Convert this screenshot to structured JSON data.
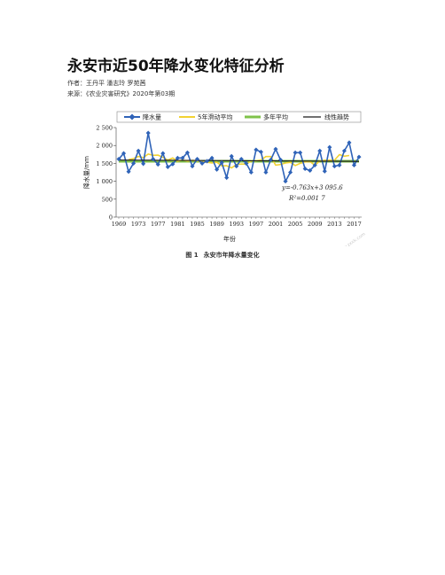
{
  "header": {
    "title": "永安市近50年降水变化特征分析",
    "authors_label": "作者：",
    "authors": "王丹平 潘志玲 罗苑茜",
    "source_label": "来源：",
    "source": "《农业灾害研究》2020年第03期"
  },
  "figure": {
    "caption_number": "图 1",
    "caption_text": "永安市年降水量变化",
    "watermark": "www.zxxk.com"
  },
  "colors": {
    "precip": "#2f63b8",
    "moving_avg": "#f2d232",
    "multi_year_avg": "#7fc24a",
    "trend": "#1a1a1a"
  },
  "chart_data": {
    "type": "line",
    "xlabel": "年份",
    "ylabel": "降水量/mm",
    "ylim": [
      0,
      2500
    ],
    "yticks": [
      "0",
      "500",
      "1 000",
      "1 500",
      "2 000",
      "2 500"
    ],
    "xticks": [
      "1969",
      "1973",
      "1977",
      "1981",
      "1985",
      "1989",
      "1993",
      "1997",
      "2001",
      "2005",
      "2009",
      "2013",
      "2017"
    ],
    "grid": false,
    "legend_position": "top",
    "annotation_eq": "y=-0.763x+3 095.6",
    "annotation_r2": "R²=0.001 7",
    "x": [
      1969,
      1970,
      1971,
      1972,
      1973,
      1974,
      1975,
      1976,
      1977,
      1978,
      1979,
      1980,
      1981,
      1982,
      1983,
      1984,
      1985,
      1986,
      1987,
      1988,
      1989,
      1990,
      1991,
      1992,
      1993,
      1994,
      1995,
      1996,
      1997,
      1998,
      1999,
      2000,
      2001,
      2002,
      2003,
      2004,
      2005,
      2006,
      2007,
      2008,
      2009,
      2010,
      2011,
      2012,
      2013,
      2014,
      2015,
      2016,
      2017,
      2018
    ],
    "series": [
      {
        "name": "降水量",
        "values": [
          1620,
          1780,
          1270,
          1500,
          1850,
          1490,
          2350,
          1620,
          1470,
          1780,
          1400,
          1480,
          1650,
          1650,
          1800,
          1420,
          1620,
          1500,
          1560,
          1650,
          1330,
          1520,
          1100,
          1700,
          1420,
          1620,
          1500,
          1250,
          1880,
          1820,
          1250,
          1600,
          1900,
          1600,
          1000,
          1250,
          1800,
          1800,
          1350,
          1300,
          1450,
          1850,
          1280,
          1950,
          1420,
          1450,
          1850,
          2080,
          1450,
          1680
        ]
      },
      {
        "name": "5年滑动平均",
        "values": [
          null,
          null,
          1604,
          1634,
          1692,
          1660,
          1760,
          1726,
          1730,
          1670,
          1590,
          1650,
          1560,
          1596,
          1564,
          1584,
          1570,
          1548,
          1532,
          1512,
          1532,
          1432,
          1434,
          1374,
          1468,
          1482,
          1478,
          1570,
          1574,
          1592,
          1690,
          1690,
          1450,
          1470,
          1510,
          1530,
          1440,
          1500,
          1540,
          1550,
          1448,
          1566,
          1590,
          1590,
          1590,
          1744,
          1700,
          1720,
          null,
          null
        ]
      },
      {
        "name": "多年平均",
        "values": [
          1560,
          1560,
          1560,
          1560,
          1560,
          1560,
          1560,
          1560,
          1560,
          1560,
          1560,
          1560,
          1560,
          1560,
          1560,
          1560,
          1560,
          1560,
          1560,
          1560,
          1560,
          1560,
          1560,
          1560,
          1560,
          1560,
          1560,
          1560,
          1560,
          1560,
          1560,
          1560,
          1560,
          1560,
          1560,
          1560,
          1560,
          1560,
          1560,
          1560,
          1560,
          1560,
          1560,
          1560,
          1560,
          1560,
          1560,
          1560,
          1560,
          1560
        ]
      },
      {
        "name": "线性趋势",
        "values": [
          1593,
          1592,
          1591,
          1591,
          1590,
          1589,
          1588,
          1588,
          1587,
          1586,
          1585,
          1585,
          1584,
          1583,
          1582,
          1582,
          1581,
          1580,
          1579,
          1579,
          1578,
          1577,
          1576,
          1576,
          1575,
          1574,
          1573,
          1572,
          1572,
          1571,
          1570,
          1569,
          1569,
          1568,
          1567,
          1566,
          1566,
          1565,
          1564,
          1563,
          1563,
          1562,
          1561,
          1560,
          1560,
          1559,
          1558,
          1557,
          1556,
          1556
        ]
      }
    ]
  }
}
